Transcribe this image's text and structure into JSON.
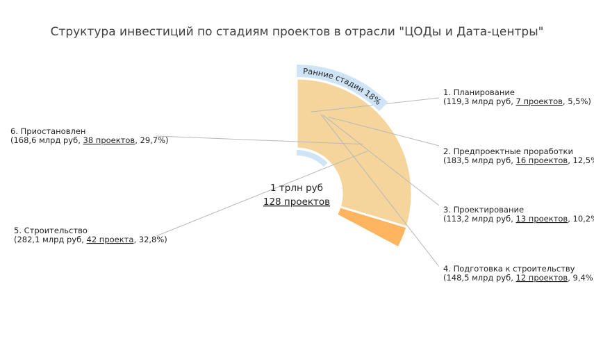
{
  "title": "Структура инвестиций по стадиям проектов в отрасли \"ЦОДы и Дата-центры\"",
  "chart_data": {
    "type": "pie",
    "variant": "donut",
    "title": "Структура инвестиций по стадиям проектов в отрасли \"ЦОДы и Дата-центры\"",
    "center": {
      "total": "1 трлн руб",
      "projects": "128 проектов"
    },
    "group_annotation": {
      "label": "Ранние стадии 18%",
      "covers": [
        "1. Планирование",
        "2. Предпроектные проработки"
      ],
      "color": "#CFE5F7"
    },
    "slices": [
      {
        "name": "1. Планирование",
        "amount": "119,3 млрд руб",
        "projects": "7 проектов",
        "value": 5.5,
        "pct_label": "5,5%",
        "color": "#4A6B84"
      },
      {
        "name": "2. Предпроектные проработки",
        "amount": "183,5 млрд руб",
        "projects": "16 проектов",
        "value": 12.5,
        "pct_label": "12,5%",
        "color": "#A9CBD1"
      },
      {
        "name": "3. Проектирование",
        "amount": "113,2 млрд руб",
        "projects": "13 проектов",
        "value": 10.2,
        "pct_label": "10,2%",
        "color": "#2A4A6F"
      },
      {
        "name": "4. Подготовка к строительству",
        "amount": "148,5 млрд руб",
        "projects": "12 проектов",
        "value": 9.4,
        "pct_label": "9,4%",
        "color": "#E56540"
      },
      {
        "name": "5. Строительство",
        "amount": "282,1 млрд руб",
        "projects": "42 проекта",
        "value": 32.8,
        "pct_label": "32,8%",
        "color": "#FFB55F"
      },
      {
        "name": "6. Приостановлен",
        "amount": "168,6 млрд руб",
        "projects": "38 проектов",
        "value": 29.7,
        "pct_label": "29,7%",
        "color": "#F5D59B"
      }
    ]
  }
}
